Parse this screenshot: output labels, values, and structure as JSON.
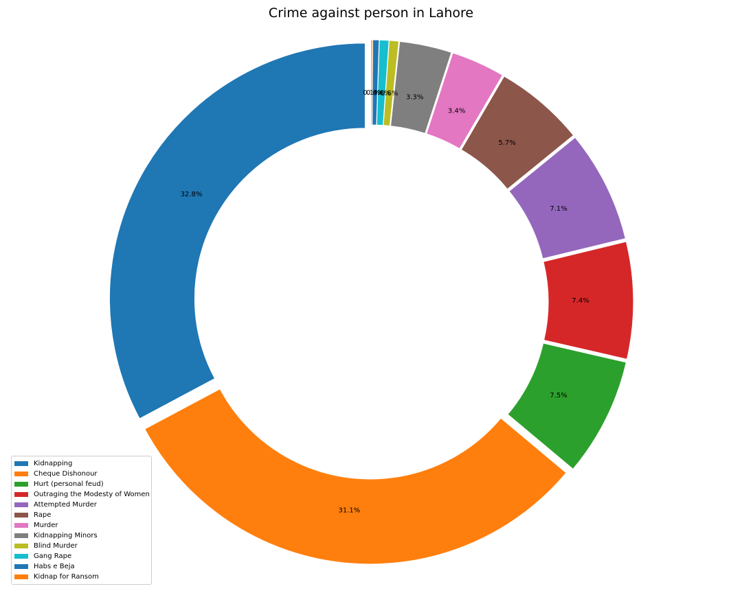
{
  "chart_data": {
    "type": "pie",
    "style": "donut",
    "title": "Crime against person in Lahore",
    "legend_position": "lower-left",
    "start": "top, counterclockwise",
    "categories": [
      "Kidnapping",
      "Cheque Dishonour",
      "Hurt (personal feud)",
      "Outraging the Modesty of Women",
      "Attempted Murder",
      "Rape",
      "Murder",
      "Kidnapping Minors",
      "Blind Murder",
      "Gang Rape",
      "Habs e Beja",
      "Kidnap for Ransom"
    ],
    "values": [
      32.8,
      31.1,
      7.5,
      7.4,
      7.1,
      5.7,
      3.4,
      3.3,
      0.6,
      0.6,
      0.4,
      0.1
    ],
    "labels": [
      "32.8%",
      "31.1%",
      "7.5%",
      "7.4%",
      "7.1%",
      "5.7%",
      "3.4%",
      "3.3%",
      "0.6%",
      "0.6%",
      "0.4%",
      "0.1%"
    ],
    "colors": [
      "#1f77b4",
      "#ff7f0e",
      "#2ca02c",
      "#d62728",
      "#9467bd",
      "#8c564b",
      "#e377c2",
      "#7f7f7f",
      "#bcbd22",
      "#17becf",
      "#1f77b4",
      "#ff7f0e"
    ]
  }
}
